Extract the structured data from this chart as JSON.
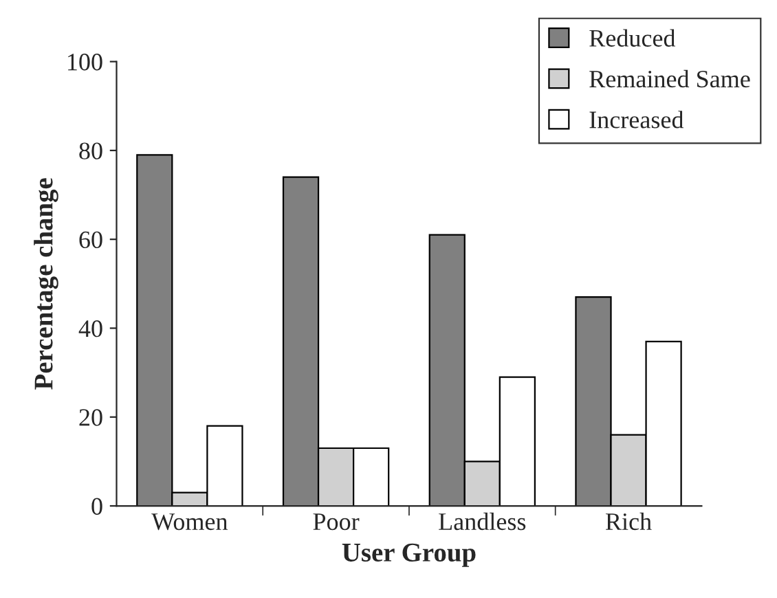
{
  "chart_data": {
    "type": "bar",
    "xlabel": "User Group",
    "ylabel": "Percentage change",
    "categories": [
      "Women",
      "Poor",
      "Landless",
      "Rich"
    ],
    "series": [
      {
        "name": "Reduced",
        "color": "#808080",
        "values": [
          79,
          74,
          61,
          47
        ]
      },
      {
        "name": "Remained Same",
        "color": "#d0d0d0",
        "values": [
          3,
          13,
          10,
          16
        ]
      },
      {
        "name": "Increased",
        "color": "#ffffff",
        "values": [
          18,
          13,
          29,
          37
        ]
      }
    ],
    "ylim": [
      0,
      100
    ],
    "yticks": [
      0,
      20,
      40,
      60,
      80,
      100
    ],
    "grid": false,
    "legend": "top right"
  }
}
